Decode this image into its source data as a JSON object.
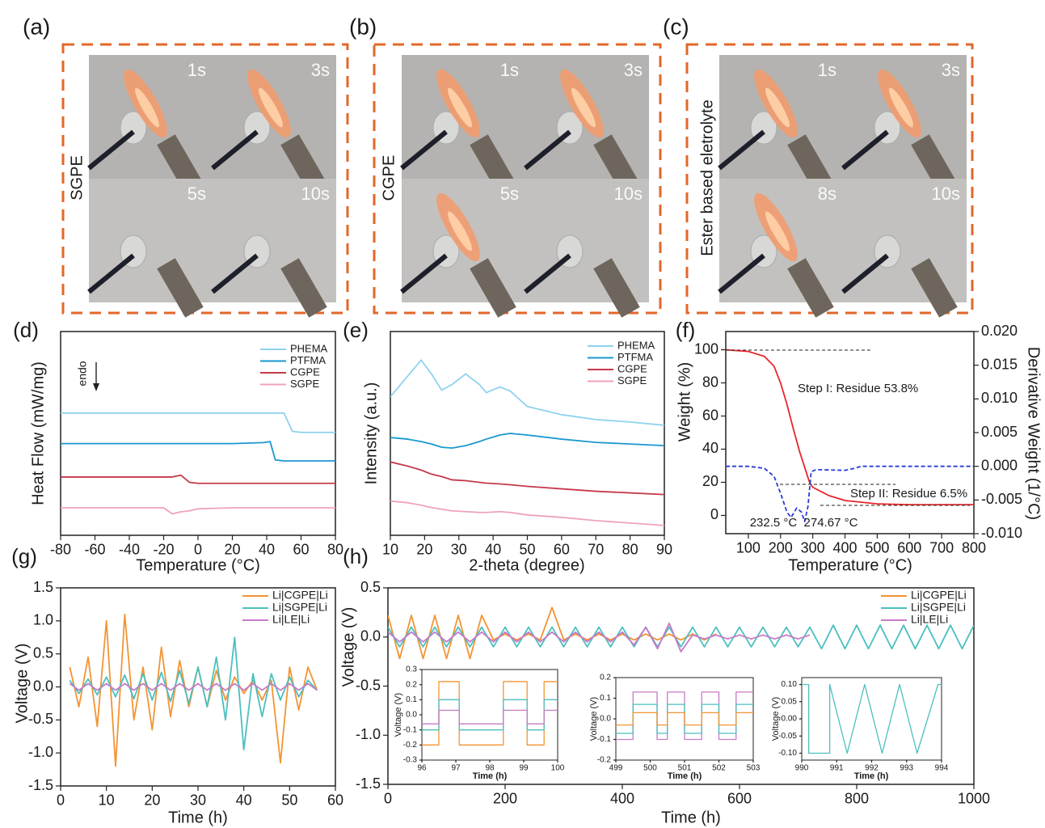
{
  "photo_panels": [
    {
      "label": "(a)",
      "side_label": "SGPE",
      "frames": [
        "1s",
        "3s",
        "5s",
        "10s"
      ]
    },
    {
      "label": "(b)",
      "side_label": "CGPE",
      "frames": [
        "1s",
        "3s",
        "5s",
        "10s"
      ]
    },
    {
      "label": "(c)",
      "side_label": "Ester based eletrolyte",
      "frames": [
        "1s",
        "3s",
        "8s",
        "10s"
      ]
    }
  ],
  "chart_data": [
    {
      "type": "line",
      "panel_label": "(d)",
      "x_label": "Temperature (°C)",
      "y_label": "Heat Flow (mW/mg)",
      "annotations": [
        "endo"
      ],
      "x": [
        -80,
        -60,
        -40,
        -20,
        -15,
        -10,
        -5,
        0,
        20,
        38,
        42,
        45,
        50,
        55,
        60,
        80
      ],
      "xlim": [
        -80,
        80
      ],
      "xticks": [
        -80,
        -60,
        -40,
        -20,
        0,
        20,
        40,
        60,
        80
      ],
      "ylim": [
        0,
        10
      ],
      "series": [
        {
          "name": "PHEMA",
          "color": "#8ed2ef",
          "values": [
            6,
            6,
            6,
            6,
            6,
            6,
            6,
            6,
            6,
            6,
            6,
            6,
            6,
            5.1,
            5.05,
            5.05
          ]
        },
        {
          "name": "PTFMA",
          "color": "#1a98cf",
          "values": [
            4.5,
            4.5,
            4.5,
            4.5,
            4.5,
            4.5,
            4.5,
            4.5,
            4.5,
            4.55,
            4.6,
            3.7,
            3.65,
            3.65,
            3.65,
            3.65
          ]
        },
        {
          "name": "CGPE",
          "color": "#c63a4c",
          "values": [
            2.86,
            2.86,
            2.86,
            2.86,
            2.86,
            2.95,
            2.6,
            2.55,
            2.55,
            2.55,
            2.55,
            2.55,
            2.55,
            2.55,
            2.55,
            2.55
          ]
        },
        {
          "name": "SGPE",
          "color": "#f0a2bb",
          "values": [
            1.35,
            1.35,
            1.35,
            1.35,
            1.05,
            1.15,
            1.2,
            1.3,
            1.35,
            1.35,
            1.35,
            1.35,
            1.35,
            1.35,
            1.35,
            1.35
          ]
        }
      ]
    },
    {
      "type": "line",
      "panel_label": "(e)",
      "x_label": "2-theta (degree)",
      "y_label": "Intensity (a.u.)",
      "x": [
        10,
        15,
        19,
        22,
        25,
        28,
        32,
        36,
        38,
        42,
        45,
        50,
        60,
        70,
        80,
        90
      ],
      "xlim": [
        10,
        90
      ],
      "xticks": [
        10,
        20,
        30,
        40,
        50,
        60,
        70,
        80,
        90
      ],
      "ylim": [
        0,
        10
      ],
      "series": [
        {
          "name": "PHEMA",
          "color": "#8ed2ef",
          "values": [
            6.8,
            7.8,
            8.6,
            7.92,
            7.12,
            7.4,
            7.92,
            7.4,
            7.0,
            7.28,
            7.08,
            6.32,
            5.92,
            5.68,
            5.56,
            5.4
          ]
        },
        {
          "name": "PTFMA",
          "color": "#1a98cf",
          "values": [
            4.8,
            4.72,
            4.6,
            4.48,
            4.32,
            4.28,
            4.4,
            4.6,
            4.72,
            4.92,
            5.0,
            4.92,
            4.72,
            4.56,
            4.48,
            4.4
          ]
        },
        {
          "name": "CGPE",
          "color": "#c63a4c",
          "values": [
            3.6,
            3.4,
            3.2,
            3.0,
            2.88,
            2.72,
            2.68,
            2.6,
            2.56,
            2.52,
            2.48,
            2.4,
            2.28,
            2.16,
            2.08,
            2.0
          ]
        },
        {
          "name": "SGPE",
          "color": "#f0a2bb",
          "values": [
            1.68,
            1.6,
            1.48,
            1.36,
            1.28,
            1.2,
            1.16,
            1.12,
            1.12,
            1.16,
            1.12,
            1.0,
            0.88,
            0.72,
            0.6,
            0.48
          ]
        }
      ]
    },
    {
      "type": "line",
      "panel_label": "(f)",
      "x_label": "Temperature (°C)",
      "y_label": "Weight (%)",
      "y2_label": "Derivative Weight (1/°C)",
      "annotations": [
        "Step I: Residue 53.8%",
        "Step II: Residue 6.5%",
        "232.5 °C",
        "274.67 °C"
      ],
      "xlim": [
        30,
        800
      ],
      "xticks": [
        100,
        200,
        300,
        400,
        500,
        600,
        700,
        800
      ],
      "ylim": [
        -11,
        111
      ],
      "yticks": [
        0,
        20,
        40,
        60,
        80,
        100
      ],
      "y2lim": [
        -0.01,
        0.02
      ],
      "y2ticks": [
        {
          "value": -0.01,
          "label": "-0.010"
        },
        {
          "value": -0.005,
          "label": "-0.005"
        },
        {
          "value": 0,
          "label": "0.000"
        },
        {
          "value": 0.005,
          "label": "0.005"
        },
        {
          "value": 0.01,
          "label": "0.010"
        },
        {
          "value": 0.015,
          "label": "0.015"
        },
        {
          "value": 0.02,
          "label": "0.020"
        }
      ],
      "series": [
        {
          "color": "#e8262a",
          "x": [
            30,
            100,
            150,
            180,
            200,
            220,
            240,
            260,
            280,
            290,
            300,
            350,
            400,
            500,
            600,
            800
          ],
          "values": [
            100,
            99,
            96,
            90,
            80,
            67,
            52,
            38,
            26,
            20,
            17,
            12,
            9,
            7,
            6.5,
            6.5
          ]
        },
        {
          "color": "#2a3bd8",
          "axis": "y2",
          "line_style": "dashed",
          "x": [
            30,
            100,
            150,
            180,
            200,
            220,
            232.5,
            250,
            265,
            274.67,
            285,
            295,
            310,
            400,
            430,
            450,
            500,
            800
          ],
          "values": [
            0,
            0,
            -0.0003,
            -0.0015,
            -0.004,
            -0.0068,
            -0.0076,
            -0.0062,
            -0.0068,
            -0.0082,
            -0.006,
            -0.0008,
            -0.0005,
            -0.0006,
            -0.0003,
            0,
            0,
            0
          ]
        }
      ]
    },
    {
      "type": "line",
      "panel_label": "(g)",
      "x_label": "Time (h)",
      "y_label": "Voltage (V)",
      "x": [
        2,
        4,
        6,
        8,
        10,
        12,
        14,
        16,
        18,
        20,
        22,
        24,
        26,
        28,
        30,
        32,
        34,
        36,
        38,
        40,
        42,
        44,
        46,
        48,
        50,
        52,
        54,
        56
      ],
      "xlim": [
        0,
        60
      ],
      "xticks": [
        0,
        10,
        20,
        30,
        40,
        50,
        60
      ],
      "ylim": [
        -1.5,
        1.5
      ],
      "yticks": [
        -1.5,
        {
          "value": -1,
          "label": "-1.0"
        },
        -0.5,
        {
          "value": 0,
          "label": "0.0"
        },
        0.5,
        {
          "value": 1,
          "label": "1.0"
        },
        1.5
      ],
      "series": [
        {
          "name": "Li|CGPE|Li",
          "color": "#f39433",
          "values": [
            0.3,
            -0.3,
            0.45,
            -0.6,
            1.0,
            -1.2,
            1.1,
            -0.5,
            0.3,
            -0.65,
            0.6,
            -0.45,
            0.4,
            -0.3,
            0.3,
            -0.3,
            0.25,
            -0.2,
            0.15,
            -0.1,
            0.1,
            -0.2,
            0.1,
            -1.15,
            0.3,
            -0.35,
            0.3,
            -0.05
          ]
        },
        {
          "name": "Li|SGPE|Li",
          "color": "#4cbfbf",
          "values": [
            0.1,
            -0.1,
            0.12,
            -0.12,
            0.15,
            -0.15,
            0.18,
            -0.18,
            0.2,
            -0.2,
            0.22,
            -0.22,
            0.25,
            -0.25,
            0.3,
            -0.3,
            0.45,
            -0.5,
            0.75,
            -0.95,
            0.2,
            -0.45,
            0.2,
            -0.2,
            0.15,
            -0.15,
            0.1,
            -0.05
          ]
        },
        {
          "name": "Li|LE|Li",
          "color": "#c77ac7",
          "values": [
            0.05,
            -0.05,
            0.05,
            -0.05,
            0.05,
            -0.05,
            0.05,
            -0.05,
            0.05,
            -0.05,
            0.05,
            -0.05,
            0.05,
            -0.05,
            0.05,
            -0.05,
            0.05,
            -0.05,
            0.05,
            -0.05,
            0.05,
            -0.05,
            0.05,
            -0.05,
            0.05,
            -0.05,
            0.05,
            -0.05
          ]
        }
      ]
    },
    {
      "type": "line",
      "panel_label": "(h)",
      "x_label": "Time (h)",
      "y_label": "Voltage (V)",
      "x": [
        0,
        20,
        40,
        60,
        80,
        100,
        120,
        140,
        160,
        180,
        200,
        220,
        240,
        260,
        280,
        300,
        320,
        340,
        360,
        380,
        400,
        420,
        440,
        460,
        480,
        500,
        520,
        540,
        560,
        580,
        600,
        620,
        640,
        660,
        680,
        700,
        720,
        740,
        760,
        780,
        800,
        820,
        840,
        860,
        880,
        900,
        920,
        940,
        960,
        980,
        1000
      ],
      "xlim": [
        0,
        1000
      ],
      "xticks": [
        0,
        200,
        400,
        600,
        800,
        1000
      ],
      "ylim": [
        -1.5,
        0.5
      ],
      "yticks": [
        -1.5,
        {
          "value": -1,
          "label": "-1.0"
        },
        -0.5,
        {
          "value": 0,
          "label": "0.0"
        },
        0.5
      ],
      "series": [
        {
          "name": "Li|CGPE|Li",
          "color": "#f39433",
          "values": [
            0.22,
            -0.22,
            0.22,
            -0.22,
            0.22,
            -0.22,
            0.22,
            -0.22,
            0.22,
            -0.03,
            0.03,
            -0.03,
            0.03,
            -0.03,
            0.3,
            -0.03,
            0.03,
            -0.03,
            0.03,
            -0.03,
            0.03,
            -0.03,
            0.03,
            -0.03,
            0.03,
            -0.03,
            0.03,
            -0.03,
            0.03,
            null,
            null,
            null,
            null,
            null,
            null,
            null,
            null,
            null,
            null,
            null,
            null,
            null,
            null,
            null,
            null,
            null,
            null,
            null,
            null,
            null,
            null
          ]
        },
        {
          "name": "Li|SGPE|Li",
          "color": "#4cbfbf",
          "values": [
            0.1,
            -0.1,
            0.1,
            -0.1,
            0.1,
            -0.1,
            0.1,
            -0.1,
            0.1,
            -0.1,
            0.1,
            -0.1,
            0.1,
            -0.1,
            0.1,
            -0.1,
            0.1,
            -0.1,
            0.1,
            -0.1,
            0.1,
            -0.1,
            0.1,
            -0.1,
            0.1,
            -0.1,
            0.1,
            -0.1,
            0.1,
            -0.1,
            0.1,
            -0.1,
            0.1,
            -0.1,
            0.1,
            -0.1,
            0.1,
            -0.12,
            0.12,
            -0.12,
            0.12,
            -0.12,
            0.12,
            -0.12,
            0.12,
            -0.12,
            0.12,
            -0.12,
            0.12,
            -0.12,
            0.12
          ]
        },
        {
          "name": "Li|LE|Li",
          "color": "#c77ac7",
          "values": [
            0.05,
            -0.05,
            0.05,
            -0.05,
            0.05,
            -0.05,
            0.05,
            -0.05,
            0.05,
            -0.05,
            0.05,
            -0.05,
            0.05,
            -0.05,
            0.05,
            -0.05,
            0.05,
            -0.05,
            0.05,
            -0.05,
            0.05,
            -0.08,
            0.1,
            -0.12,
            0.14,
            -0.15,
            0.02,
            -0.02,
            0.02,
            -0.02,
            0.02,
            -0.02,
            0.02,
            -0.02,
            0.02,
            -0.02,
            0.02,
            null,
            null,
            null,
            null,
            null,
            null,
            null,
            null,
            null,
            null,
            null,
            null,
            null,
            null
          ]
        }
      ]
    },
    {
      "type": "line",
      "x_label": "Time (h)",
      "y_label": "Voltage (V)",
      "x": [
        96,
        96.5,
        96.5,
        97.1,
        97.1,
        98.4,
        98.4,
        99.1,
        99.1,
        99.6,
        99.6,
        100
      ],
      "xlim": [
        96,
        100
      ],
      "xticks": [
        96,
        97,
        98,
        99,
        100
      ],
      "ylim": [
        -0.3,
        0.3
      ],
      "yticks": [
        -0.3,
        -0.2,
        -0.1,
        {
          "value": 0,
          "label": "0.0"
        },
        0.1,
        0.2,
        0.3
      ],
      "series": [
        {
          "color": "#f39433",
          "values": [
            -0.2,
            -0.2,
            0.22,
            0.22,
            -0.2,
            -0.2,
            0.22,
            0.22,
            -0.2,
            -0.2,
            0.22,
            0.22
          ]
        },
        {
          "color": "#4cbfbf",
          "values": [
            -0.1,
            -0.1,
            0.1,
            0.1,
            -0.1,
            -0.1,
            0.1,
            0.1,
            -0.1,
            -0.1,
            0.1,
            0.1
          ]
        },
        {
          "color": "#c77ac7",
          "values": [
            -0.06,
            -0.06,
            0.03,
            0.03,
            -0.06,
            -0.06,
            0.03,
            0.03,
            -0.06,
            -0.06,
            0.03,
            0.03
          ]
        }
      ]
    },
    {
      "type": "line",
      "x_label": "Time (h)",
      "y_label": "Voltage (V)",
      "x": [
        499,
        499.5,
        499.5,
        500.2,
        500.2,
        500.5,
        500.5,
        501,
        501,
        501.5,
        501.5,
        502,
        502,
        502.5,
        502.5,
        503
      ],
      "xlim": [
        499,
        503
      ],
      "xticks": [
        499,
        500,
        501,
        502,
        503
      ],
      "ylim": [
        -0.2,
        0.2
      ],
      "yticks": [
        -0.2,
        -0.1,
        {
          "value": 0,
          "label": "0.0"
        },
        0.1,
        0.2
      ],
      "series": [
        {
          "color": "#c77ac7",
          "values": [
            -0.1,
            -0.1,
            0.13,
            0.13,
            -0.1,
            -0.1,
            0.13,
            0.13,
            -0.1,
            -0.1,
            0.13,
            0.13,
            -0.1,
            -0.1,
            0.13,
            0.13
          ]
        },
        {
          "color": "#4cbfbf",
          "values": [
            -0.07,
            -0.07,
            0.07,
            0.07,
            -0.07,
            -0.07,
            0.07,
            0.07,
            -0.07,
            -0.07,
            0.07,
            0.07,
            -0.07,
            -0.07,
            0.07,
            0.07
          ]
        },
        {
          "color": "#f39433",
          "values": [
            -0.03,
            -0.03,
            0.03,
            0.03,
            -0.03,
            -0.03,
            0.03,
            0.03,
            -0.03,
            -0.03,
            0.03,
            0.03,
            -0.03,
            -0.03,
            0.03,
            0.03
          ]
        }
      ]
    },
    {
      "type": "line",
      "x_label": "Time (h)",
      "y_label": "Voltage (V)",
      "x": [
        990,
        990.2,
        990.2,
        990.8,
        990.8,
        991.3,
        991.3,
        991.8,
        991.8,
        992.3,
        992.3,
        992.8,
        992.8,
        993.3,
        993.3,
        993.9,
        993.9,
        994
      ],
      "xlim": [
        990,
        994
      ],
      "xticks": [
        990,
        991,
        992,
        993,
        994
      ],
      "ylim": [
        -0.12,
        0.12
      ],
      "yticks": [
        {
          "value": -0.1,
          "label": "-0.10"
        },
        -0.05,
        {
          "value": 0,
          "label": "0.00"
        },
        0.05,
        {
          "value": 0.1,
          "label": "0.10"
        }
      ],
      "series": [
        {
          "color": "#4cbfbf",
          "values": [
            0.1,
            0.1,
            -0.1,
            -0.1,
            0.1,
            -0.1,
            -0.1,
            0.1,
            0.1,
            -0.1,
            -0.1,
            0.1,
            0.1,
            -0.1,
            -0.1,
            0.1,
            0.1,
            0.1
          ]
        }
      ]
    }
  ]
}
